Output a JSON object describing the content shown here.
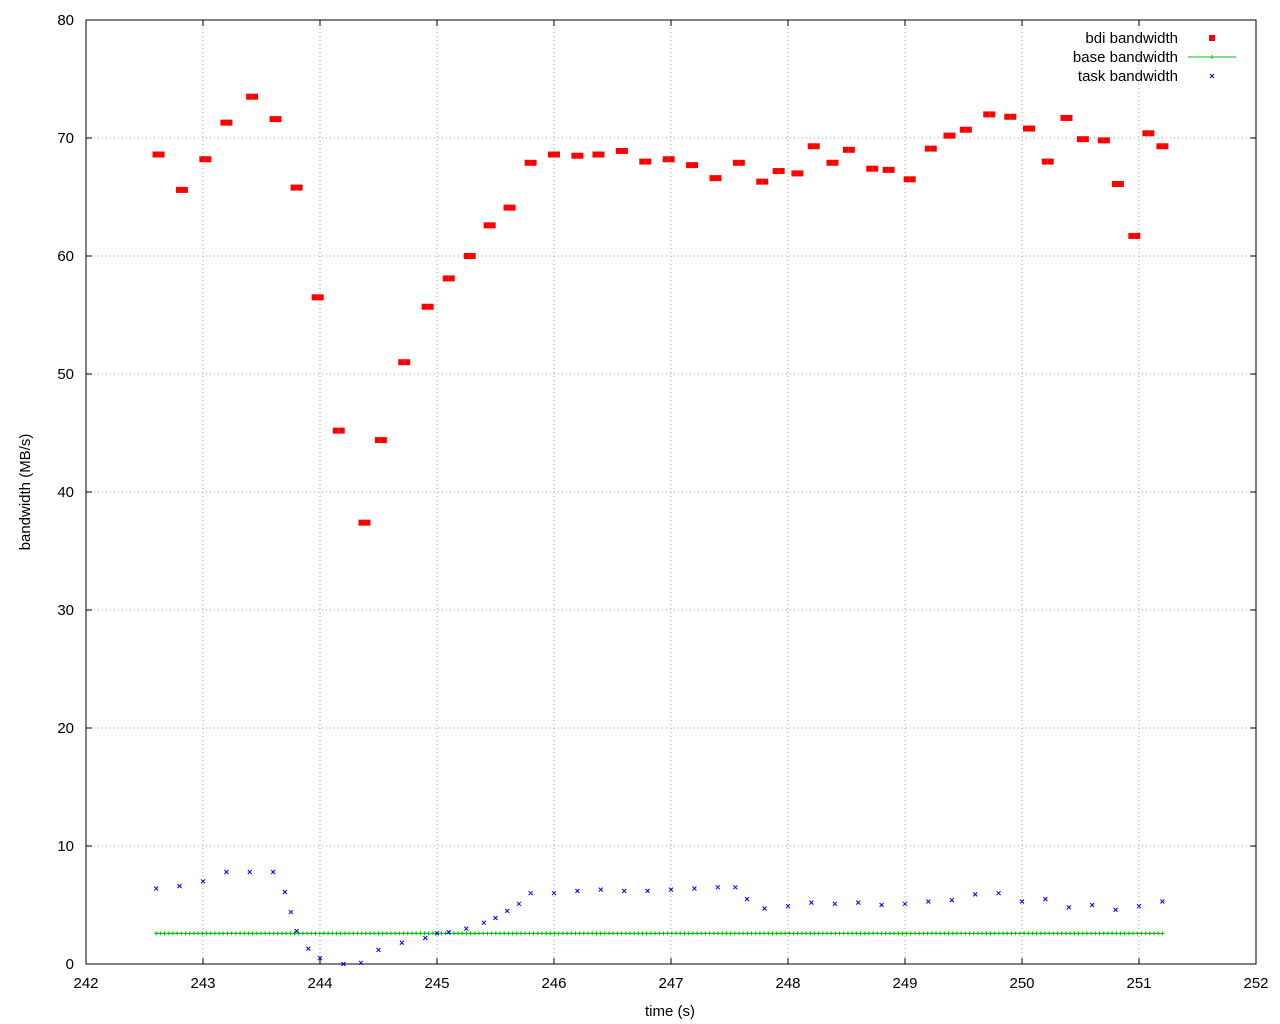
{
  "chart_data": {
    "type": "scatter",
    "title": "",
    "xlabel": "time (s)",
    "ylabel": "bandwidth (MB/s)",
    "xlim": [
      242,
      252
    ],
    "ylim": [
      0,
      80
    ],
    "xticks": [
      "242",
      "243",
      "244",
      "245",
      "246",
      "247",
      "248",
      "249",
      "250",
      "251",
      "252"
    ],
    "yticks": [
      "0",
      "10",
      "20",
      "30",
      "40",
      "50",
      "60",
      "70",
      "80"
    ],
    "grid": true,
    "legend_position": "top-right",
    "series": [
      {
        "name": "bdi bandwidth",
        "color": "#ff0000",
        "marker": "square",
        "x": [
          242.62,
          242.82,
          243.02,
          243.2,
          243.42,
          243.62,
          243.8,
          243.98,
          244.16,
          244.38,
          244.52,
          244.72,
          244.92,
          245.1,
          245.28,
          245.45,
          245.62,
          245.8,
          246.0,
          246.2,
          246.38,
          246.58,
          246.78,
          246.98,
          247.18,
          247.38,
          247.58,
          247.78,
          247.92,
          248.08,
          248.22,
          248.38,
          248.52,
          248.72,
          248.86,
          249.04,
          249.22,
          249.38,
          249.52,
          249.72,
          249.9,
          250.06,
          250.22,
          250.38,
          250.52,
          250.7,
          250.82,
          250.96,
          251.08,
          251.2
        ],
        "y": [
          68.6,
          65.6,
          68.2,
          71.3,
          73.5,
          71.6,
          65.8,
          56.5,
          45.2,
          37.4,
          44.4,
          51.0,
          55.7,
          58.1,
          60.0,
          62.6,
          64.1,
          67.9,
          68.6,
          68.5,
          68.6,
          68.9,
          68.0,
          68.2,
          67.7,
          66.6,
          67.9,
          66.3,
          67.2,
          67.0,
          69.3,
          67.9,
          69.0,
          67.4,
          67.3,
          66.5,
          69.1,
          70.2,
          70.7,
          72.0,
          71.8,
          70.8,
          68.0,
          71.7,
          69.9,
          69.8,
          66.1,
          61.7,
          70.4,
          69.3
        ]
      },
      {
        "name": "base bandwidth",
        "color": "#00c000",
        "marker": "plus",
        "x": [
          242.6,
          251.2
        ],
        "y": [
          2.6,
          2.6
        ]
      },
      {
        "name": "task bandwidth",
        "color": "#0000ff",
        "marker": "cross",
        "x": [
          242.6,
          242.8,
          243.0,
          243.2,
          243.4,
          243.6,
          243.7,
          243.75,
          243.8,
          243.9,
          244.0,
          244.2,
          244.35,
          244.5,
          244.7,
          244.9,
          245.0,
          245.1,
          245.25,
          245.4,
          245.5,
          245.6,
          245.7,
          245.8,
          246.0,
          246.2,
          246.4,
          246.6,
          246.8,
          247.0,
          247.2,
          247.4,
          247.55,
          247.65,
          247.8,
          248.0,
          248.2,
          248.4,
          248.6,
          248.8,
          249.0,
          249.2,
          249.4,
          249.6,
          249.8,
          250.0,
          250.2,
          250.4,
          250.6,
          250.8,
          251.0,
          251.2
        ],
        "y": [
          6.4,
          6.6,
          7.0,
          7.8,
          7.8,
          7.8,
          6.1,
          4.4,
          2.8,
          1.3,
          0.5,
          0.0,
          0.1,
          1.2,
          1.8,
          2.2,
          2.6,
          2.7,
          3.0,
          3.5,
          3.9,
          4.5,
          5.1,
          6.0,
          6.0,
          6.2,
          6.3,
          6.2,
          6.2,
          6.3,
          6.4,
          6.5,
          6.5,
          5.5,
          4.7,
          4.9,
          5.2,
          5.1,
          5.2,
          5.0,
          5.1,
          5.3,
          5.4,
          5.9,
          6.0,
          5.3,
          5.5,
          4.8,
          5.0,
          4.6,
          4.9,
          5.3
        ]
      }
    ]
  }
}
